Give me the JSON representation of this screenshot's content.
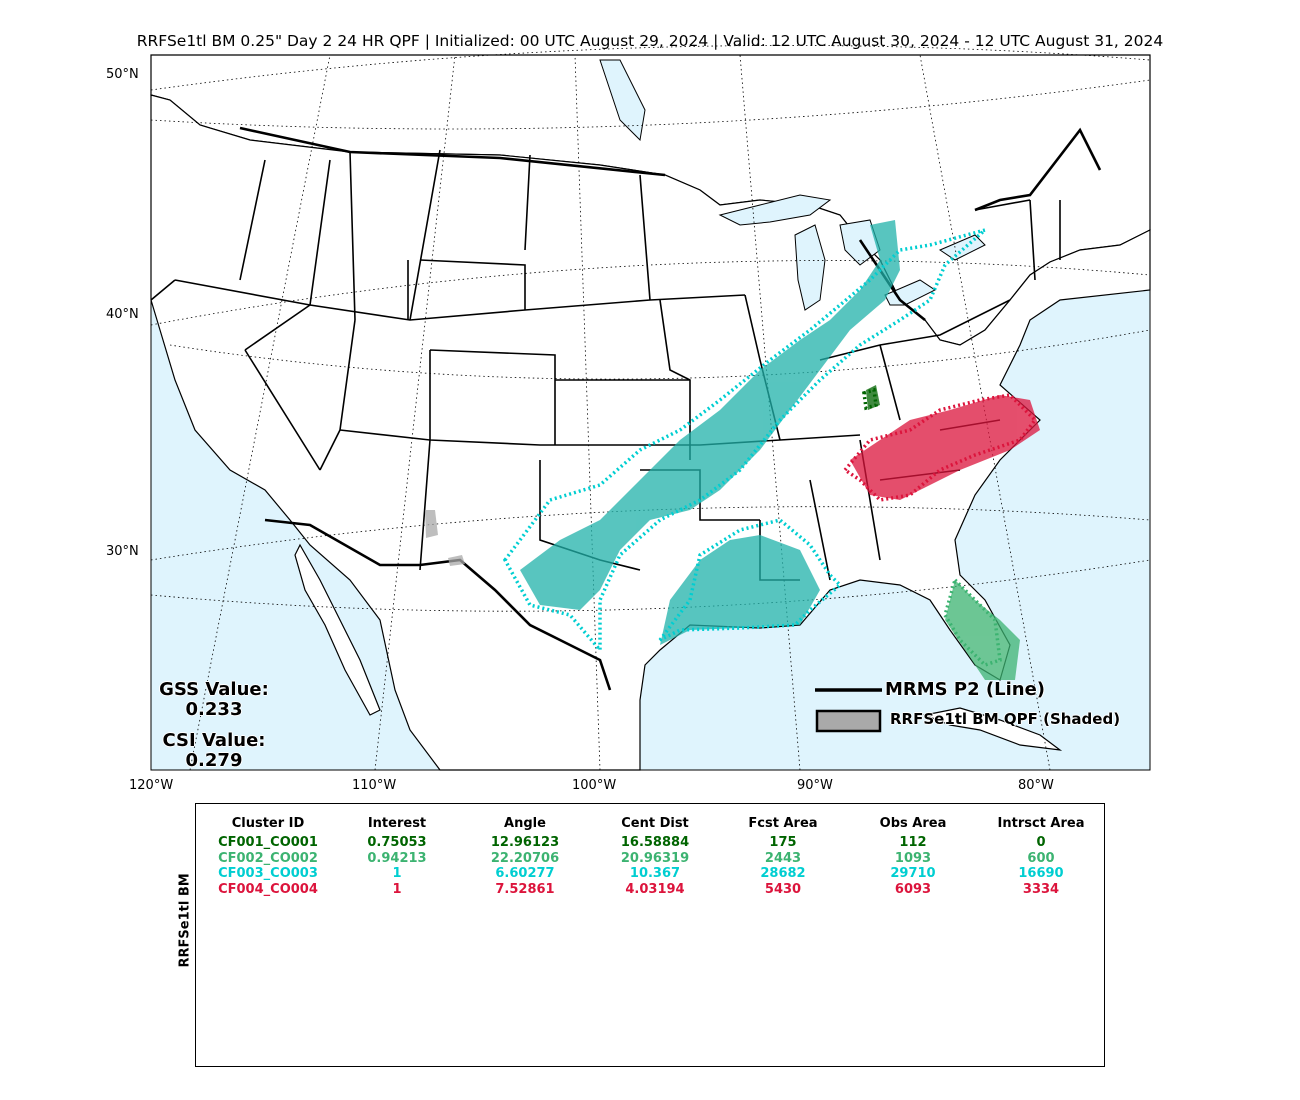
{
  "title": "RRFSe1tl BM 0.25\" Day 2 24 HR QPF | Initialized: 00 UTC August 29, 2024 | Valid: 12 UTC August 30, 2024 - 12 UTC August 31, 2024",
  "lat_labels": [
    "50°N",
    "40°N",
    "30°N"
  ],
  "lon_labels": [
    "120°W",
    "110°W",
    "100°W",
    "90°W",
    "80°W"
  ],
  "scores": {
    "gss_label": "GSS Value:",
    "gss_value": "0.233",
    "csi_label": "CSI Value:",
    "csi_value": "0.279"
  },
  "legend": {
    "line_label": "MRMS P2 (Line)",
    "shaded_label": "RRFSe1tl BM QPF (Shaded)"
  },
  "table": {
    "side_label": "RRFSe1tl BM",
    "headers": [
      "Cluster ID",
      "Interest",
      "Angle",
      "Cent Dist",
      "Fcst Area",
      "Obs Area",
      "Intrsct Area"
    ],
    "rows": [
      {
        "color": "#006400",
        "cells": [
          "CF001_CO001",
          "0.75053",
          "12.96123",
          "16.58884",
          "175",
          "112",
          "0"
        ]
      },
      {
        "color": "#3cb371",
        "cells": [
          "CF002_CO002",
          "0.94213",
          "22.20706",
          "20.96319",
          "2443",
          "1093",
          "600"
        ]
      },
      {
        "color": "#00ced1",
        "cells": [
          "CF003_CO003",
          "1",
          "6.60277",
          "10.367",
          "28682",
          "29710",
          "16690"
        ]
      },
      {
        "color": "#dc143c",
        "cells": [
          "CF004_CO004",
          "1",
          "7.52861",
          "4.03194",
          "5430",
          "6093",
          "3334"
        ]
      }
    ]
  },
  "colors": {
    "ocean": "#dff4fd",
    "cluster_dark_green": "#006400",
    "cluster_green": "#3cb371",
    "cluster_cyan": "#20b2aa",
    "cluster_red": "#dc143c",
    "unmatched_gray": "#a9a9a9"
  }
}
